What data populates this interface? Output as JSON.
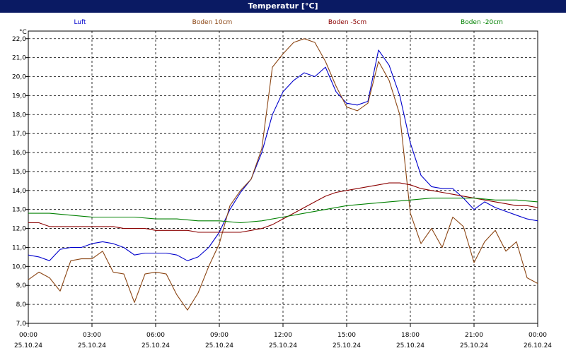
{
  "title": "Temperatur [°C]",
  "chart_data": {
    "type": "line",
    "title": "Temperatur [°C]",
    "ylabel": "°C",
    "ylim": [
      7.0,
      22.4
    ],
    "xlim": [
      0,
      24
    ],
    "grid": true,
    "legend_position": "top",
    "yticks": [
      7.0,
      8.0,
      9.0,
      10.0,
      11.0,
      12.0,
      13.0,
      14.0,
      15.0,
      16.0,
      17.0,
      18.0,
      19.0,
      20.0,
      21.0,
      22.0
    ],
    "ytick_labels": [
      "7,0",
      "8,0",
      "9,0",
      "10,0",
      "11,0",
      "12,0",
      "13,0",
      "14,0",
      "15,0",
      "16,0",
      "17,0",
      "18,0",
      "19,0",
      "20,0",
      "21,0",
      "22,0"
    ],
    "xticks": [
      0,
      3,
      6,
      9,
      12,
      15,
      18,
      21,
      24
    ],
    "xtick_times": [
      "00:00",
      "03:00",
      "06:00",
      "09:00",
      "12:00",
      "15:00",
      "18:00",
      "21:00",
      "00:00"
    ],
    "xtick_dates": [
      "25.10.24",
      "25.10.24",
      "25.10.24",
      "25.10.24",
      "25.10.24",
      "25.10.24",
      "25.10.24",
      "25.10.24",
      "26.10.24"
    ],
    "series": [
      {
        "name": "Luft",
        "color": "#0000cc",
        "x": [
          0,
          0.5,
          1,
          1.5,
          2,
          2.5,
          3,
          3.5,
          4,
          4.5,
          5,
          5.5,
          6,
          6.5,
          7,
          7.5,
          8,
          8.5,
          9,
          9.5,
          10,
          10.5,
          11,
          11.5,
          12,
          12.5,
          13,
          13.5,
          14,
          14.5,
          15,
          15.5,
          16,
          16.5,
          17,
          17.5,
          18,
          18.5,
          19,
          19.5,
          20,
          20.5,
          21,
          21.5,
          22,
          22.5,
          23,
          23.5,
          24
        ],
        "y": [
          10.6,
          10.5,
          10.3,
          10.9,
          11.0,
          11.0,
          11.2,
          11.3,
          11.2,
          11.0,
          10.6,
          10.7,
          10.7,
          10.7,
          10.6,
          10.3,
          10.5,
          11.0,
          11.8,
          13.0,
          13.9,
          14.6,
          16.0,
          18.0,
          19.2,
          19.8,
          20.2,
          20.0,
          20.5,
          19.2,
          18.6,
          18.5,
          18.7,
          21.4,
          20.6,
          19.0,
          16.5,
          14.8,
          14.2,
          14.1,
          14.1,
          13.6,
          13.0,
          13.4,
          13.1,
          12.9,
          12.7,
          12.5,
          12.4
        ]
      },
      {
        "name": "Boden 10cm",
        "color": "#8b4513",
        "x": [
          0,
          0.5,
          1,
          1.5,
          2,
          2.5,
          3,
          3.5,
          4,
          4.5,
          5,
          5.5,
          6,
          6.5,
          7,
          7.5,
          8,
          8.5,
          9,
          9.5,
          10,
          10.5,
          11,
          11.5,
          12,
          12.5,
          13,
          13.5,
          14,
          14.5,
          15,
          15.5,
          16,
          16.5,
          17,
          17.5,
          18,
          18.5,
          19,
          19.5,
          20,
          20.5,
          21,
          21.5,
          22,
          22.5,
          23,
          23.5,
          24
        ],
        "y": [
          9.3,
          9.7,
          9.4,
          8.7,
          10.3,
          10.4,
          10.4,
          10.8,
          9.7,
          9.6,
          8.1,
          9.6,
          9.7,
          9.6,
          8.5,
          7.7,
          8.6,
          10.0,
          11.2,
          13.2,
          14.0,
          14.6,
          16.2,
          20.5,
          21.2,
          21.8,
          22.0,
          21.8,
          20.8,
          19.5,
          18.4,
          18.2,
          18.6,
          20.8,
          19.8,
          18.0,
          12.8,
          11.2,
          12.0,
          11.0,
          12.6,
          12.1,
          10.2,
          11.3,
          11.9,
          10.8,
          11.3,
          9.4,
          9.1
        ]
      },
      {
        "name": "Boden -5cm",
        "color": "#8b0000",
        "x": [
          0,
          0.5,
          1,
          1.5,
          2,
          2.5,
          3,
          3.5,
          4,
          4.5,
          5,
          5.5,
          6,
          6.5,
          7,
          7.5,
          8,
          8.5,
          9,
          9.5,
          10,
          10.5,
          11,
          11.5,
          12,
          12.5,
          13,
          13.5,
          14,
          14.5,
          15,
          15.5,
          16,
          16.5,
          17,
          17.5,
          18,
          18.5,
          19,
          19.5,
          20,
          20.5,
          21,
          21.5,
          22,
          22.5,
          23,
          23.5,
          24
        ],
        "y": [
          12.3,
          12.3,
          12.1,
          12.1,
          12.1,
          12.1,
          12.1,
          12.1,
          12.1,
          12.0,
          12.0,
          12.0,
          11.9,
          11.9,
          11.9,
          11.9,
          11.8,
          11.8,
          11.8,
          11.8,
          11.8,
          11.9,
          12.0,
          12.2,
          12.5,
          12.8,
          13.1,
          13.4,
          13.7,
          13.9,
          14.0,
          14.1,
          14.2,
          14.3,
          14.4,
          14.4,
          14.3,
          14.1,
          14.0,
          13.9,
          13.8,
          13.7,
          13.6,
          13.5,
          13.4,
          13.3,
          13.2,
          13.2,
          13.1
        ]
      },
      {
        "name": "Boden -20cm",
        "color": "#008000",
        "x": [
          0,
          1,
          2,
          3,
          4,
          5,
          6,
          7,
          8,
          9,
          10,
          11,
          12,
          13,
          14,
          15,
          16,
          17,
          18,
          19,
          20,
          21,
          22,
          23,
          24
        ],
        "y": [
          12.8,
          12.8,
          12.7,
          12.6,
          12.6,
          12.6,
          12.5,
          12.5,
          12.4,
          12.4,
          12.3,
          12.4,
          12.6,
          12.8,
          13.0,
          13.2,
          13.3,
          13.4,
          13.5,
          13.6,
          13.6,
          13.6,
          13.5,
          13.5,
          13.4
        ]
      }
    ]
  }
}
